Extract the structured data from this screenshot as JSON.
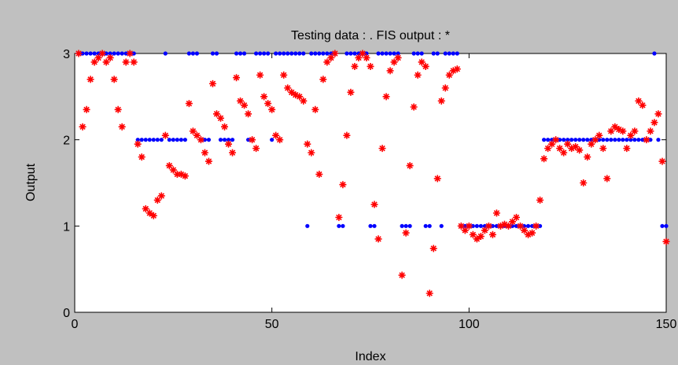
{
  "chart_data": {
    "type": "scatter",
    "title": "Testing data : .    FIS output : *",
    "xlabel": "Index",
    "ylabel": "Output",
    "x": [
      1,
      2,
      3,
      4,
      5,
      6,
      7,
      8,
      9,
      10,
      11,
      12,
      13,
      14,
      15,
      16,
      17,
      18,
      19,
      20,
      21,
      22,
      23,
      24,
      25,
      26,
      27,
      28,
      29,
      30,
      31,
      32,
      33,
      34,
      35,
      36,
      37,
      38,
      39,
      40,
      41,
      42,
      43,
      44,
      45,
      46,
      47,
      48,
      49,
      50,
      51,
      52,
      53,
      54,
      55,
      56,
      57,
      58,
      59,
      60,
      61,
      62,
      63,
      64,
      65,
      66,
      67,
      68,
      69,
      70,
      71,
      72,
      73,
      74,
      75,
      76,
      77,
      78,
      79,
      80,
      81,
      82,
      83,
      84,
      85,
      86,
      87,
      88,
      89,
      90,
      91,
      92,
      93,
      94,
      95,
      96,
      97,
      98,
      99,
      100,
      101,
      102,
      103,
      104,
      105,
      106,
      107,
      108,
      109,
      110,
      111,
      112,
      113,
      114,
      115,
      116,
      117,
      118,
      119,
      120,
      121,
      122,
      123,
      124,
      125,
      126,
      127,
      128,
      129,
      130,
      131,
      132,
      133,
      134,
      135,
      136,
      137,
      138,
      139,
      140,
      141,
      142,
      143,
      144,
      145,
      146,
      147,
      148,
      149,
      150
    ],
    "series": [
      {
        "color": "#0000ff",
        "marker": "dot",
        "values": [
          3,
          3,
          3,
          3,
          3,
          3,
          3,
          3,
          3,
          3,
          3,
          3,
          3,
          3,
          3,
          2,
          2,
          2,
          2,
          2,
          2,
          2,
          3,
          2,
          2,
          2,
          2,
          2,
          3,
          3,
          3,
          2,
          2,
          2,
          3,
          3,
          2,
          2,
          2,
          2,
          3,
          3,
          3,
          2,
          2,
          3,
          3,
          3,
          3,
          2,
          3,
          3,
          3,
          3,
          3,
          3,
          3,
          3,
          1,
          3,
          3,
          3,
          3,
          3,
          3,
          3,
          1,
          1,
          3,
          3,
          3,
          3,
          3,
          3,
          1,
          1,
          3,
          3,
          3,
          3,
          3,
          3,
          1,
          1,
          1,
          3,
          3,
          3,
          1,
          1,
          3,
          3,
          1,
          3,
          3,
          3,
          3,
          1,
          1,
          1,
          1,
          1,
          1,
          1,
          1,
          1,
          1,
          1,
          1,
          1,
          1,
          1,
          1,
          1,
          1,
          1,
          1,
          1,
          2,
          2,
          2,
          2,
          2,
          2,
          2,
          2,
          2,
          2,
          2,
          2,
          2,
          2,
          2,
          2,
          2,
          2,
          2,
          2,
          2,
          2,
          2,
          2,
          2,
          2,
          2,
          2,
          3,
          2,
          1,
          1
        ]
      },
      {
        "color": "#ff0000",
        "marker": "star",
        "values": [
          3.0,
          2.15,
          2.35,
          2.7,
          2.9,
          2.95,
          3.0,
          2.9,
          2.95,
          2.7,
          2.35,
          2.15,
          2.9,
          3.0,
          2.9,
          1.95,
          1.8,
          1.2,
          1.15,
          1.12,
          1.3,
          1.35,
          2.05,
          1.7,
          1.65,
          1.6,
          1.6,
          1.58,
          2.42,
          2.1,
          2.05,
          2.0,
          1.85,
          1.75,
          2.65,
          2.3,
          2.25,
          2.15,
          1.95,
          1.85,
          2.72,
          2.45,
          2.4,
          2.3,
          2.0,
          1.9,
          2.75,
          2.5,
          2.42,
          2.35,
          2.05,
          2.0,
          2.75,
          2.6,
          2.55,
          2.52,
          2.5,
          2.45,
          1.95,
          1.85,
          2.35,
          1.6,
          2.7,
          2.9,
          2.95,
          3.0,
          1.1,
          1.48,
          2.05,
          2.55,
          2.85,
          2.95,
          3.0,
          2.95,
          2.85,
          1.25,
          0.85,
          1.9,
          2.5,
          2.8,
          2.9,
          2.95,
          0.43,
          0.92,
          1.7,
          2.38,
          2.75,
          2.9,
          2.85,
          0.22,
          0.74,
          1.55,
          2.45,
          2.6,
          2.75,
          2.8,
          2.82,
          1.0,
          0.95,
          1.0,
          0.9,
          0.85,
          0.88,
          0.95,
          1.0,
          0.9,
          1.15,
          1.0,
          1.02,
          1.0,
          1.05,
          1.1,
          1.0,
          0.95,
          0.9,
          0.92,
          1.0,
          1.3,
          1.78,
          1.9,
          1.95,
          2.0,
          1.9,
          1.85,
          1.95,
          1.9,
          1.92,
          1.88,
          1.5,
          1.8,
          1.95,
          2.0,
          2.05,
          1.9,
          1.55,
          2.1,
          2.15,
          2.12,
          2.1,
          1.9,
          2.05,
          2.1,
          2.45,
          2.4,
          2.0,
          2.1,
          2.2,
          2.3,
          1.75,
          0.82
        ]
      }
    ],
    "xlim": [
      0,
      150
    ],
    "xticks": [
      0,
      50,
      100,
      150
    ],
    "ylim": [
      0,
      3
    ],
    "yticks": [
      0,
      1,
      2,
      3
    ]
  }
}
